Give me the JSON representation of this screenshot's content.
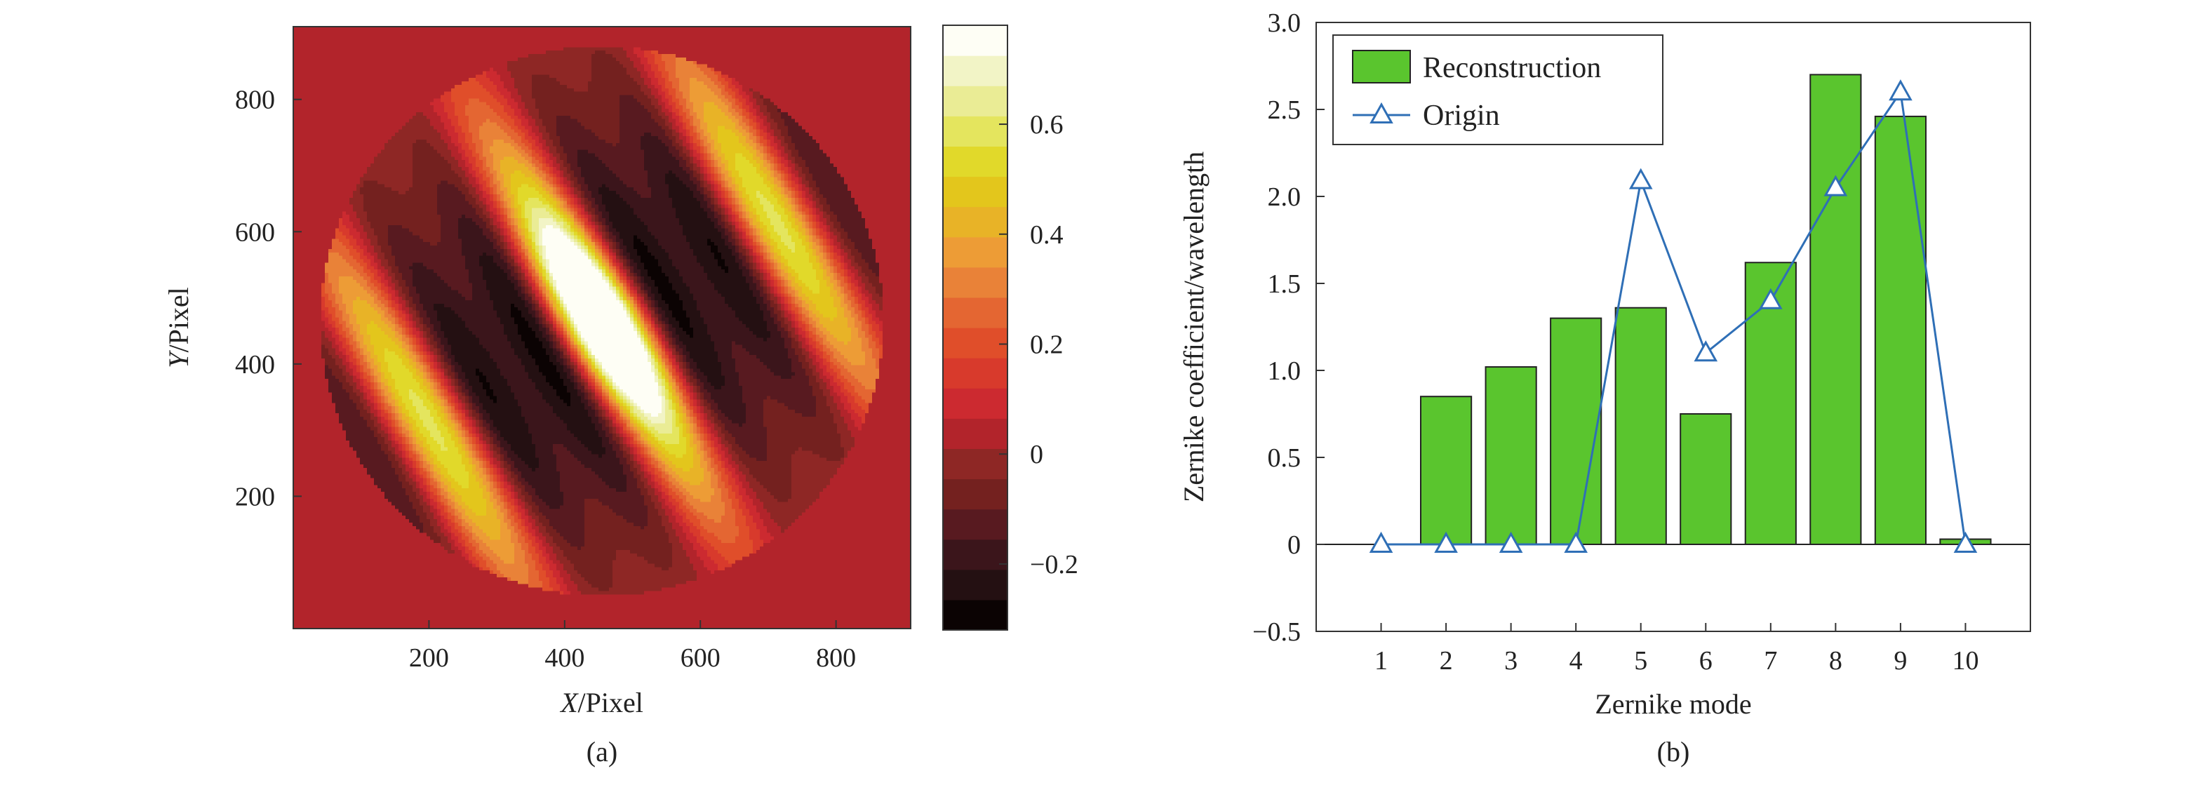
{
  "chart_data": [
    {
      "type": "heatmap",
      "panel_label": "(a)",
      "xlabel_var": "X",
      "xlabel_unit": "/Pixel",
      "ylabel_var": "Y",
      "ylabel_unit": "/Pixel",
      "xlim": [
        0,
        910
      ],
      "ylim": [
        0,
        910
      ],
      "xticks": [
        200,
        400,
        600,
        800
      ],
      "yticks": [
        200,
        400,
        600,
        800
      ],
      "colorbar": {
        "range": [
          -0.32,
          0.78
        ],
        "ticks": [
          -0.2,
          0,
          0.2,
          0.4,
          0.6
        ],
        "tick_labels": [
          "−0.2",
          "0",
          "0.2",
          "0.4",
          "0.6"
        ],
        "levels": 20,
        "colors": [
          "#0b0303",
          "#241012",
          "#3b151b",
          "#581a20",
          "#74211f",
          "#8e2725",
          "#b2242b",
          "#cc2a30",
          "#d83a2c",
          "#e04e2a",
          "#e46632",
          "#e98238",
          "#ed9c36",
          "#e8b327",
          "#e3c61c",
          "#e1d92a",
          "#e4e55e",
          "#eaec95",
          "#f2f4c6",
          "#fefef5"
        ]
      },
      "background_value": 0.05,
      "pattern": {
        "center": [
          455,
          465
        ],
        "orientation_deg": -60,
        "peak": 0.75,
        "trough": -0.3
      }
    },
    {
      "type": "bar",
      "panel_label": "(b)",
      "xlabel": "Zernike mode",
      "ylabel": "Zernike coefficient/wavelength",
      "categories": [
        "1",
        "2",
        "3",
        "4",
        "5",
        "6",
        "7",
        "8",
        "9",
        "10"
      ],
      "xlim": [
        0,
        11
      ],
      "ylim": [
        -0.5,
        3.0
      ],
      "yticks": [
        -0.5,
        0,
        0.5,
        1.0,
        1.5,
        2.0,
        2.5,
        3.0
      ],
      "ytick_labels": [
        "−0.5",
        "0",
        "0.5",
        "1.0",
        "1.5",
        "2.0",
        "2.5",
        "3.0"
      ],
      "legend_position": "top-left",
      "series": [
        {
          "name": "Reconstruction",
          "kind": "bar",
          "color": "#5ac52e",
          "x": [
            1,
            2,
            3,
            4,
            5,
            6,
            7,
            8,
            9,
            10
          ],
          "values": [
            0.0,
            0.85,
            1.02,
            1.3,
            1.36,
            0.75,
            1.62,
            2.7,
            2.46,
            0.03
          ]
        },
        {
          "name": "Origin",
          "kind": "line",
          "marker": "triangle",
          "color": "#2f6fb6",
          "x": [
            1,
            2,
            3,
            4,
            5,
            6,
            7,
            8,
            9,
            10
          ],
          "values": [
            0.0,
            0.0,
            0.0,
            0.0,
            2.09,
            1.1,
            1.4,
            2.05,
            2.6,
            0.0
          ]
        }
      ]
    }
  ]
}
